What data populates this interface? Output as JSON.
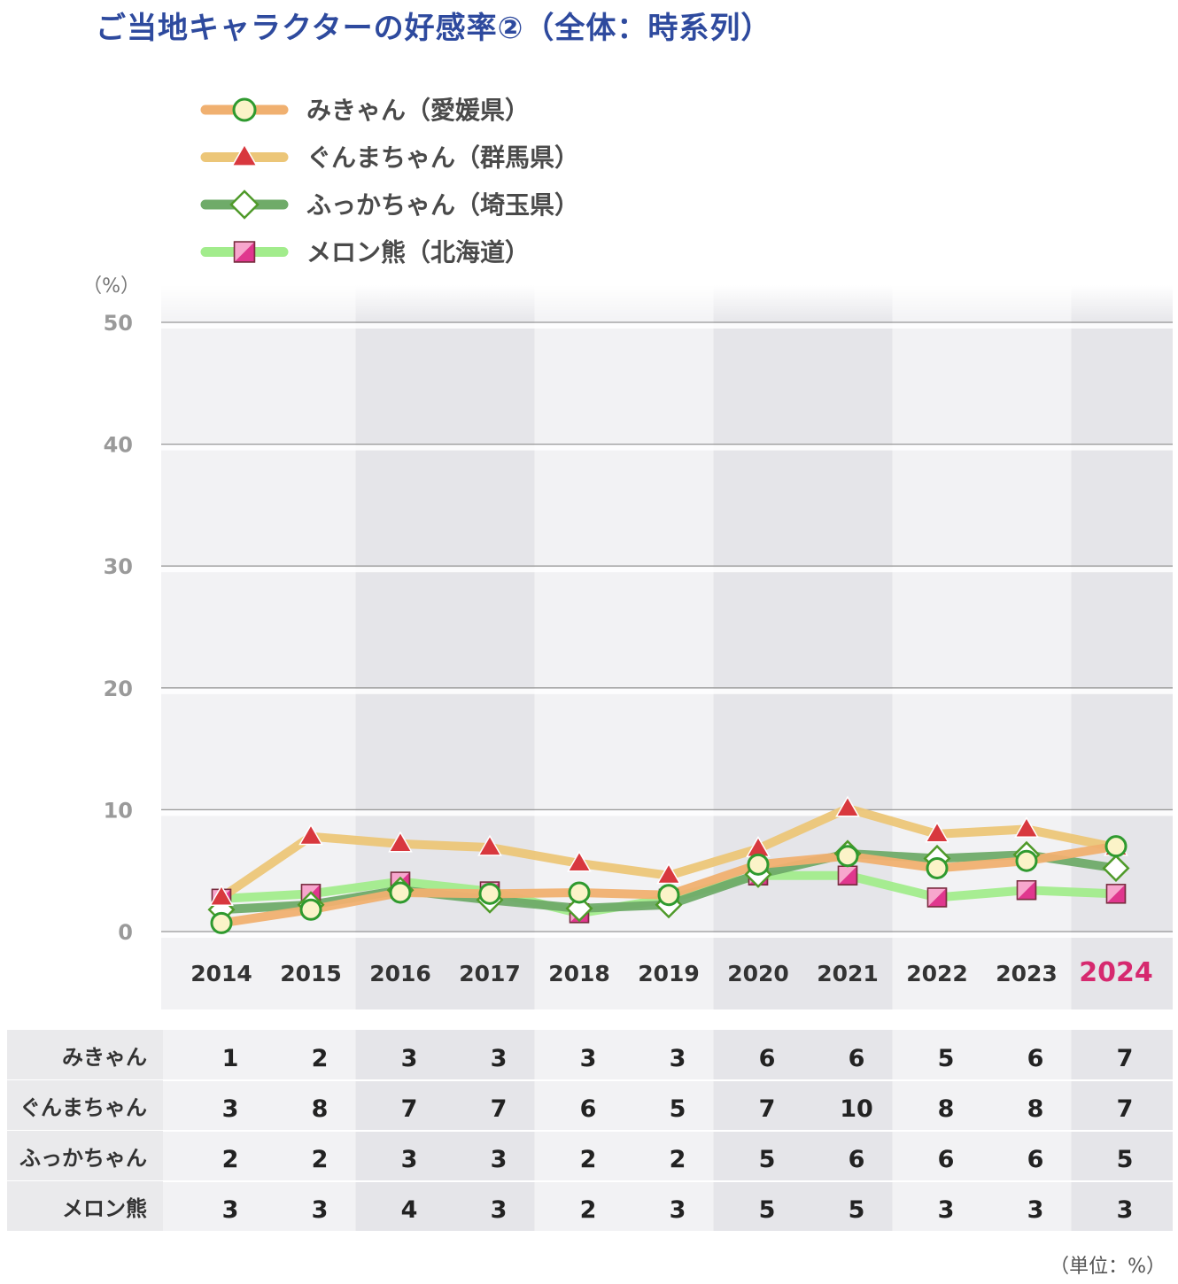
{
  "title": "ご当地キャラクターの好感率②（全体：時系列）",
  "unit_note": "（単位：%）",
  "colors": {
    "title": "#2e4a9e",
    "highlight_year": "#d6296f",
    "axis_text": "#9a9a9a",
    "band_dark": "#e5e5e9",
    "band_light": "#f2f2f4"
  },
  "chart_data": {
    "type": "line",
    "ylabel": "（%）",
    "ylim": [
      0,
      50
    ],
    "yticks": [
      0,
      10,
      20,
      30,
      40,
      50
    ],
    "grid": true,
    "legend": "top-left",
    "categories": [
      "2014",
      "2015",
      "2016",
      "2017",
      "2018",
      "2019",
      "2020",
      "2021",
      "2022",
      "2023",
      "2024"
    ],
    "highlight_category": "2024",
    "series": [
      {
        "name": "みきゃん（愛媛県）",
        "row_label": "みきゃん",
        "line_color": "#f0b070",
        "marker": "circle",
        "marker_fill": "#fbf3c8",
        "marker_stroke": "#2f9a2f",
        "values": [
          0.7,
          1.8,
          3.2,
          3.1,
          3.2,
          3.0,
          5.5,
          6.2,
          5.2,
          5.8,
          7.0
        ],
        "table_values": [
          "1",
          "2",
          "3",
          "3",
          "3",
          "3",
          "6",
          "6",
          "5",
          "6",
          "7"
        ]
      },
      {
        "name": "ぐんまちゃん（群馬県）",
        "row_label": "ぐんまちゃん",
        "line_color": "#ecc678",
        "marker": "triangle",
        "marker_fill": "#d8383e",
        "marker_stroke": "#ffffff",
        "values": [
          2.8,
          7.8,
          7.2,
          6.9,
          5.6,
          4.6,
          6.8,
          10.1,
          8.0,
          8.4,
          6.9
        ],
        "table_values": [
          "3",
          "8",
          "7",
          "7",
          "6",
          "5",
          "7",
          "10",
          "8",
          "8",
          "7"
        ]
      },
      {
        "name": "ふっかちゃん（埼玉県）",
        "row_label": "ふっかちゃん",
        "line_color": "#6fab69",
        "marker": "diamond",
        "marker_fill": "#ffffff",
        "marker_stroke": "#4f9a2a",
        "values": [
          1.8,
          2.2,
          3.4,
          2.6,
          1.9,
          2.2,
          4.7,
          6.4,
          6.0,
          6.3,
          5.2
        ],
        "table_values": [
          "2",
          "2",
          "3",
          "3",
          "2",
          "2",
          "5",
          "6",
          "6",
          "6",
          "5"
        ]
      },
      {
        "name": "メロン熊（北海道）",
        "row_label": "メロン熊",
        "line_color": "#a2ec8c",
        "marker": "square",
        "marker_fill": "#e0378e",
        "marker_stroke": "#7a2d40",
        "values": [
          2.7,
          3.1,
          4.1,
          3.3,
          1.5,
          2.7,
          4.6,
          4.6,
          2.8,
          3.4,
          3.1
        ],
        "table_values": [
          "3",
          "3",
          "4",
          "3",
          "2",
          "3",
          "5",
          "5",
          "3",
          "3",
          "3"
        ]
      }
    ]
  }
}
